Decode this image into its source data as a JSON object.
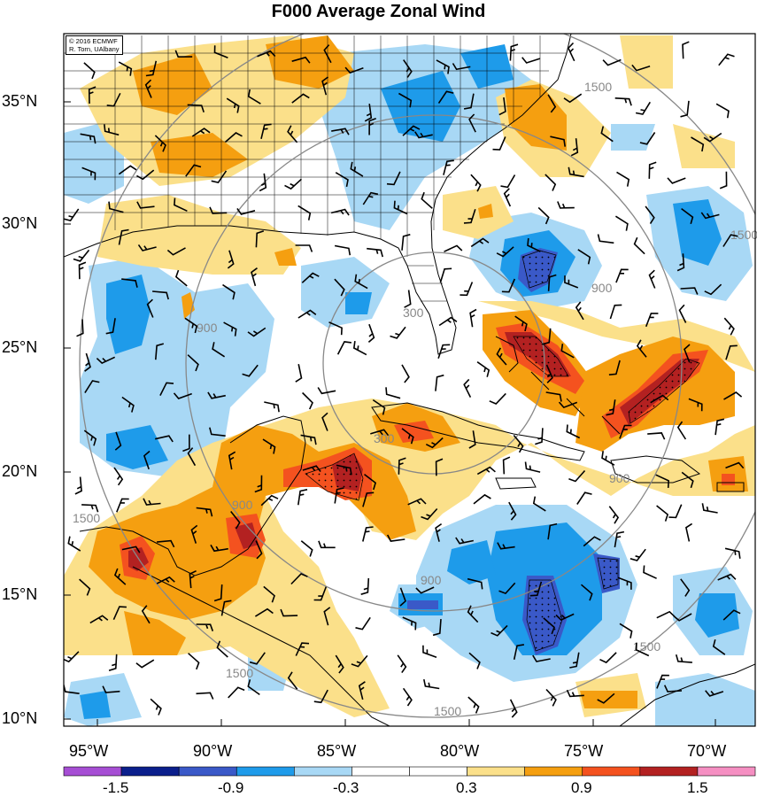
{
  "title": "F000 Average Zonal Wind",
  "credit": {
    "line1": "© 2016 ECMWF",
    "line2": "R. Torn, UAlbany"
  },
  "lat_labels": [
    "35°N",
    "30°N",
    "25°N",
    "20°N",
    "15°N",
    "10°N"
  ],
  "lon_labels": [
    "95°W",
    "90°W",
    "85°W",
    "80°W",
    "75°W",
    "70°W"
  ],
  "colorbar": {
    "labels": [
      "-1.5",
      "-0.9",
      "-0.3",
      "0.3",
      "0.9",
      "1.5"
    ],
    "colors": [
      "#a64ed4",
      "#0b1f8c",
      "#3a59c8",
      "#1e9bea",
      "#a8d8f5",
      "#ffffff",
      "#ffffff",
      "#fbe08a",
      "#f59f10",
      "#f4521f",
      "#b32121",
      "#f58fc2"
    ]
  },
  "contour_labels": {
    "range_300": "300",
    "range_900": "900",
    "range_1500": "1500"
  },
  "palette": {
    "light_blue": "#a8d8f5",
    "blue": "#1e9bea",
    "dark_blue": "#3a59c8",
    "yellow": "#fbe08a",
    "orange": "#f59f10",
    "red_orange": "#f4521f",
    "dark_red": "#b32121"
  }
}
